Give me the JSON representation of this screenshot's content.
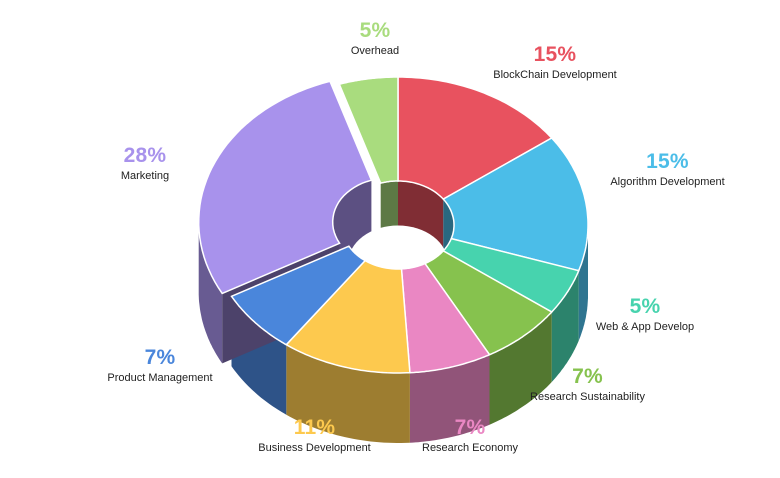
{
  "chart_data": {
    "type": "pie",
    "style": "3d-donut",
    "title": "",
    "slices": [
      {
        "label": "BlockChain Development",
        "value": 15,
        "display": "15%",
        "color": "#E8525F"
      },
      {
        "label": "Algorithm Development",
        "value": 15,
        "display": "15%",
        "color": "#4BBDE8"
      },
      {
        "label": "Web & App Develop",
        "value": 5,
        "display": "5%",
        "color": "#47D3AE"
      },
      {
        "label": "Research Sustainability",
        "value": 7,
        "display": "7%",
        "color": "#86C24E"
      },
      {
        "label": "Research Economy",
        "value": 7,
        "display": "7%",
        "color": "#EA87C3"
      },
      {
        "label": "Business Development",
        "value": 11,
        "display": "11%",
        "color": "#FDC94E"
      },
      {
        "label": "Product Management",
        "value": 7,
        "display": "7%",
        "color": "#4A86DB"
      },
      {
        "label": "Marketing",
        "value": 28,
        "display": "28%",
        "color": "#A892EC"
      },
      {
        "label": "Overhead",
        "value": 5,
        "display": "5%",
        "color": "#A9DC7E"
      }
    ]
  }
}
